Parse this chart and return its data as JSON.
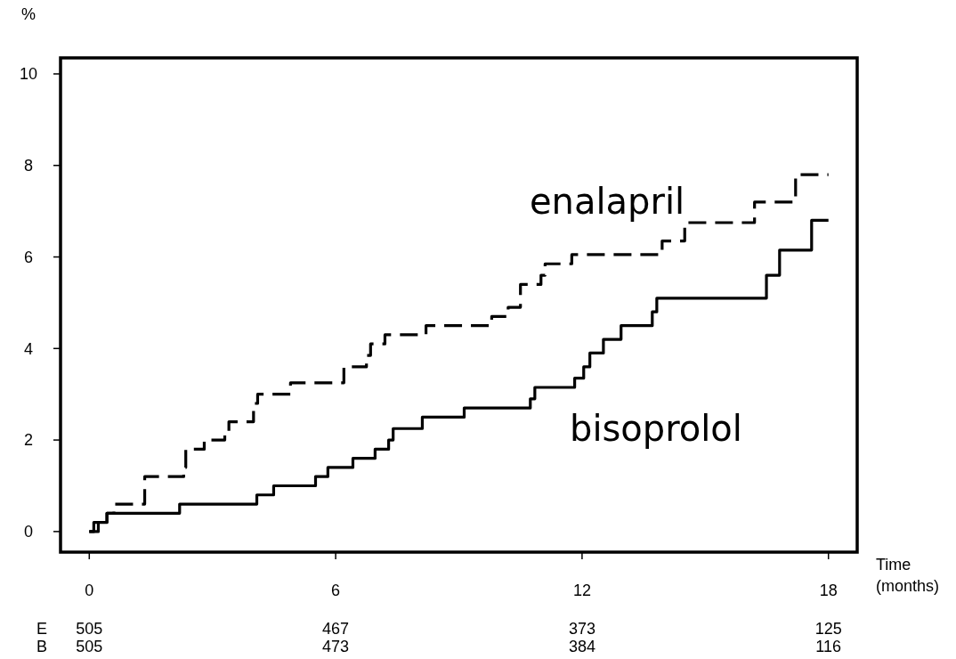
{
  "chart_data": {
    "type": "step",
    "ylabel": "%",
    "xlabel": "Time\n(months)",
    "xlim": [
      -0.7,
      18.7
    ],
    "ylim": [
      -0.45,
      10.35
    ],
    "xticks": [
      0,
      6,
      12,
      18
    ],
    "yticks": [
      0,
      2,
      4,
      6,
      8,
      10
    ],
    "grid": false,
    "series": [
      {
        "name": "enalapril",
        "color": "#000000",
        "line_style": "dashed",
        "x": [
          0,
          0.22,
          0.43,
          0.6,
          1.35,
          2.3,
          2.35,
          2.8,
          3.3,
          3.4,
          4.0,
          4.1,
          4.9,
          6.2,
          6.75,
          6.85,
          7.2,
          8.2,
          9.8,
          10.2,
          10.5,
          11.0,
          11.1,
          11.75,
          13.95,
          14.5,
          16.2,
          17.2,
          18
        ],
        "values": [
          0,
          0.2,
          0.4,
          0.6,
          1.2,
          1.4,
          1.8,
          2.0,
          2.2,
          2.4,
          2.8,
          3.0,
          3.25,
          3.6,
          3.85,
          4.1,
          4.3,
          4.5,
          4.7,
          4.9,
          5.4,
          5.6,
          5.85,
          6.05,
          6.35,
          6.75,
          7.2,
          7.8,
          7.8
        ]
      },
      {
        "name": "bisoprolol",
        "color": "#000000",
        "line_style": "solid",
        "x": [
          0,
          0.11,
          0.43,
          2.2,
          4.08,
          4.49,
          5.51,
          5.81,
          6.42,
          6.96,
          7.29,
          7.4,
          8.11,
          9.13,
          10.74,
          10.85,
          11.82,
          12.04,
          12.19,
          12.52,
          12.95,
          13.71,
          13.82,
          16.49,
          16.81,
          17.59,
          18
        ],
        "values": [
          0,
          0.2,
          0.4,
          0.6,
          0.8,
          1.0,
          1.2,
          1.4,
          1.6,
          1.8,
          2.0,
          2.25,
          2.5,
          2.7,
          2.9,
          3.15,
          3.35,
          3.6,
          3.9,
          4.2,
          4.5,
          4.8,
          5.1,
          5.6,
          6.15,
          6.8,
          6.8
        ]
      }
    ],
    "annotations": [
      "E",
      "505",
      "467",
      "373",
      "125",
      "B",
      "505",
      "473",
      "384",
      "116"
    ]
  }
}
